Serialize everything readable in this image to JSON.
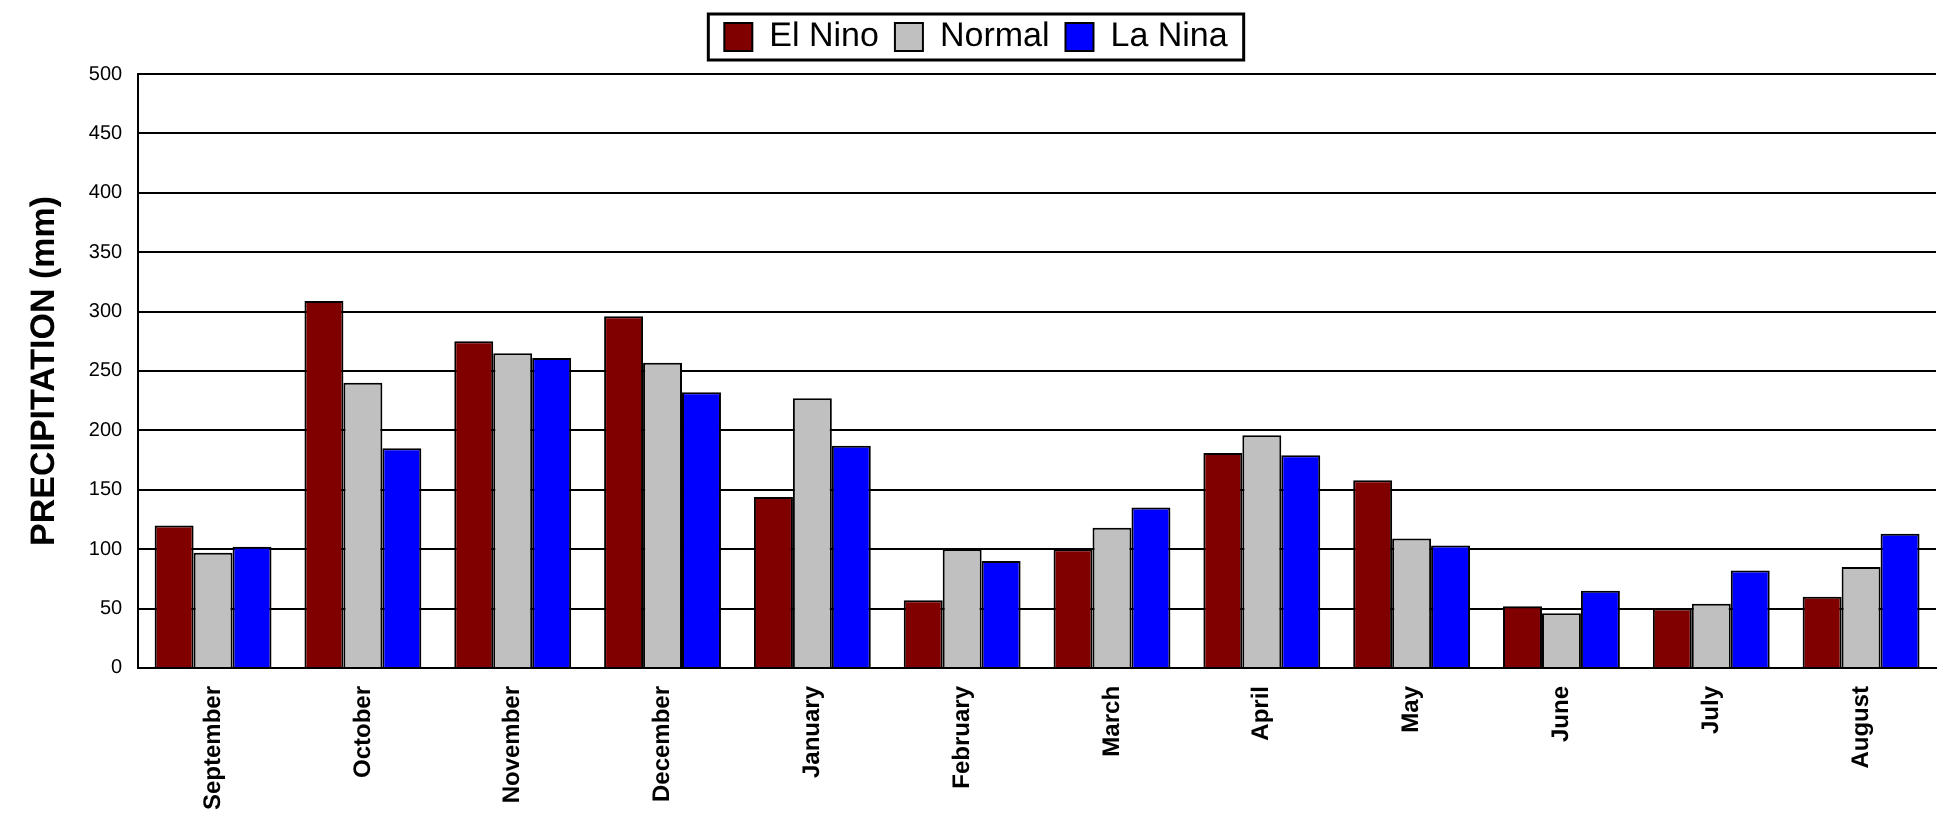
{
  "chart_data": {
    "type": "bar",
    "ylabel": "PRECIPITATION (mm)",
    "categories": [
      "September",
      "October",
      "November",
      "December",
      "January",
      "February",
      "March",
      "April",
      "May",
      "June",
      "July",
      "August"
    ],
    "series": [
      {
        "name": "El Nino",
        "color": "#800000",
        "values": [
          120,
          309,
          275,
          296,
          144,
          57,
          100,
          181,
          158,
          52,
          50,
          60
        ]
      },
      {
        "name": "Normal",
        "color": "#c0c0c0",
        "values": [
          97,
          240,
          265,
          257,
          227,
          100,
          118,
          196,
          109,
          46,
          54,
          85
        ]
      },
      {
        "name": "La Nina",
        "color": "#0000ff",
        "values": [
          102,
          185,
          261,
          232,
          187,
          90,
          135,
          179,
          103,
          65,
          82,
          113
        ]
      }
    ],
    "ylim": [
      0,
      500
    ],
    "yticks": [
      0,
      50,
      100,
      150,
      200,
      250,
      300,
      350,
      400,
      450,
      500
    ],
    "grid": "y",
    "legend": "top"
  }
}
